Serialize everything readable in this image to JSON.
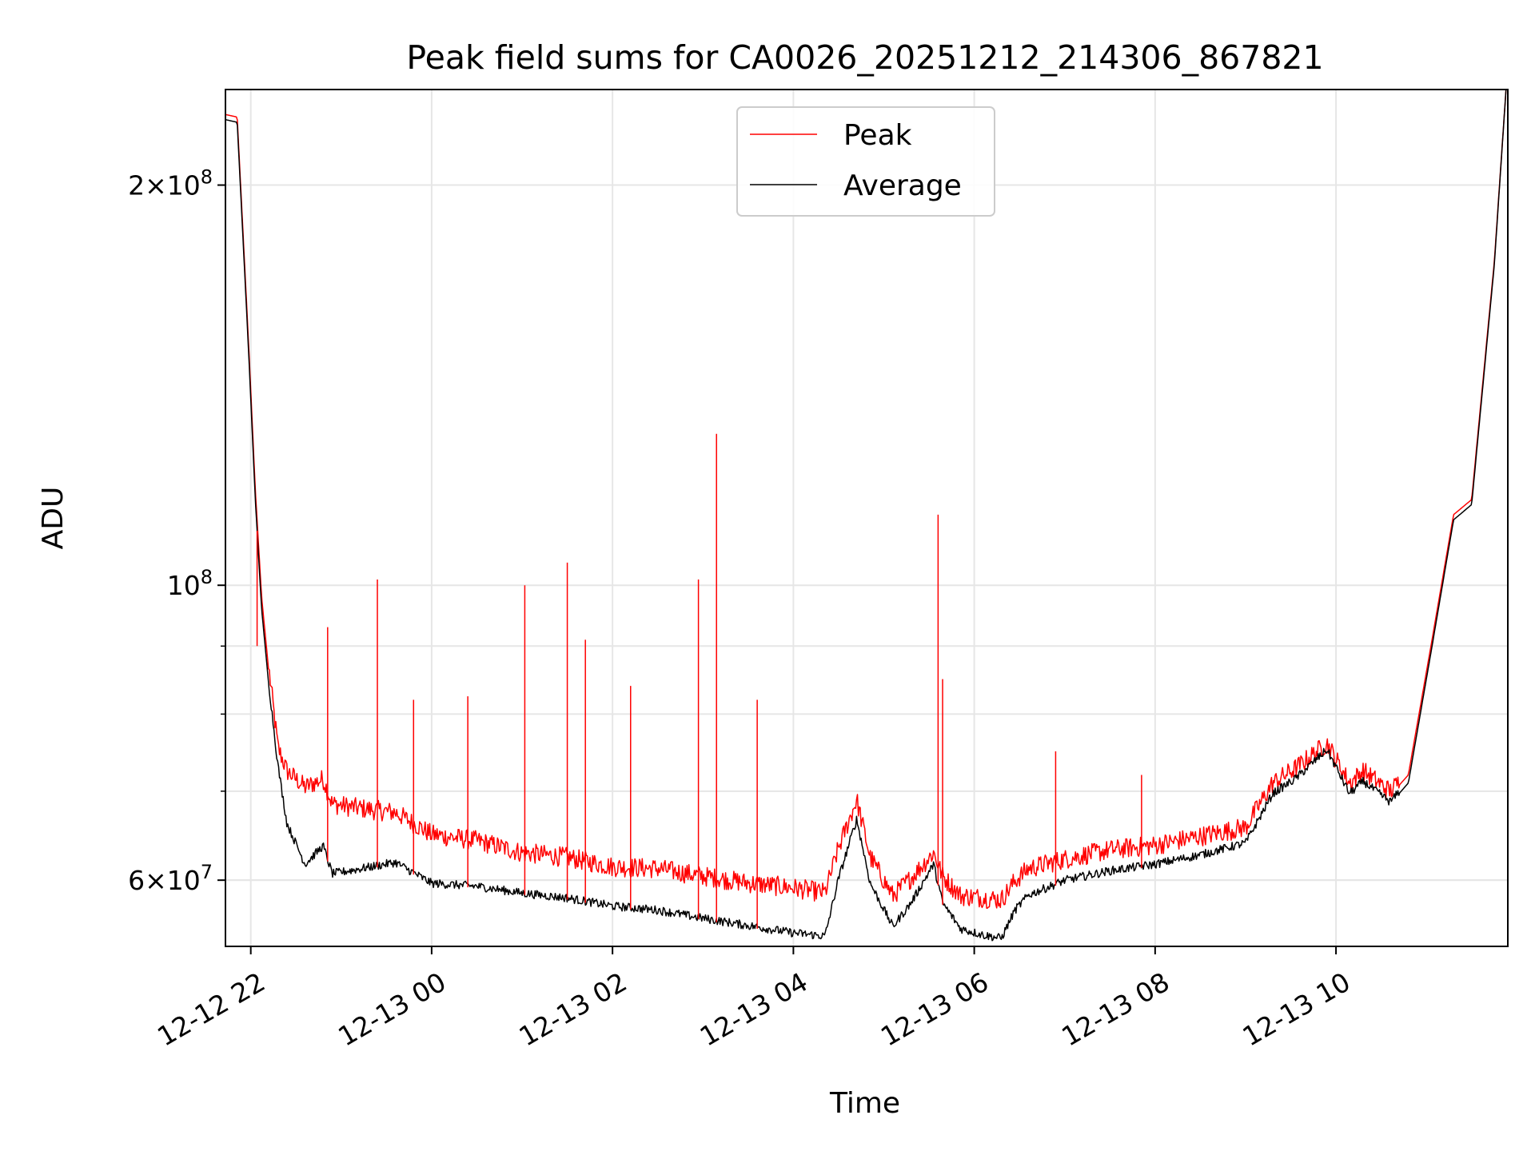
{
  "chart_data": {
    "type": "line",
    "title": "Peak field sums for CA0026_20251212_214306_867821",
    "xlabel": "Time",
    "ylabel": "ADU",
    "yscale": "log",
    "grid": true,
    "legend_position": "top-center",
    "x_unit": "hours since 2025-12-12 00:00",
    "xlim": [
      21.72,
      35.9
    ],
    "ylim": [
      53500000,
      236000000
    ],
    "x_ticks": [
      {
        "value": 22,
        "label": "12-12 22"
      },
      {
        "value": 24,
        "label": "12-13 00"
      },
      {
        "value": 26,
        "label": "12-13 02"
      },
      {
        "value": 28,
        "label": "12-13 04"
      },
      {
        "value": 30,
        "label": "12-13 06"
      },
      {
        "value": 32,
        "label": "12-13 08"
      },
      {
        "value": 34,
        "label": "12-13 10"
      }
    ],
    "y_major_ticks": [
      {
        "value": 60000000,
        "mantissa": "6",
        "exponent": "7"
      },
      {
        "value": 100000000,
        "mantissa": "",
        "exponent": "8"
      },
      {
        "value": 200000000,
        "mantissa": "2",
        "exponent": "8"
      }
    ],
    "y_minor_ticks": [
      60000000,
      70000000,
      80000000,
      90000000
    ],
    "times_sign": "×",
    "base": "10",
    "series": [
      {
        "name": "Peak",
        "color": "#ff0000",
        "x": [
          21.72,
          21.85,
          21.98,
          22.05,
          22.12,
          22.2,
          22.3,
          22.4,
          22.6,
          22.8,
          22.9,
          23.2,
          23.6,
          24.0,
          24.5,
          25.0,
          25.5,
          26.0,
          26.5,
          27.0,
          27.5,
          28.0,
          28.35,
          28.5,
          28.7,
          28.85,
          29.1,
          29.3,
          29.55,
          29.65,
          29.85,
          30.1,
          30.3,
          30.45,
          30.6,
          31.0,
          31.5,
          32.0,
          32.5,
          33.0,
          33.3,
          33.55,
          33.9,
          34.15,
          34.3,
          34.6,
          34.8,
          35.05,
          35.3,
          35.5,
          35.75,
          35.88
        ],
        "values": [
          226000000,
          225000000,
          150000000,
          118000000,
          98000000,
          86000000,
          75000000,
          72000000,
          70000000,
          71000000,
          68000000,
          67500000,
          67000000,
          64500000,
          63800000,
          62500000,
          62000000,
          61000000,
          60800000,
          60000000,
          59300000,
          58800000,
          58300000,
          63000000,
          68500000,
          62000000,
          58000000,
          59800000,
          62500000,
          60000000,
          58000000,
          57800000,
          57600000,
          59500000,
          60800000,
          61800000,
          62800000,
          63300000,
          64300000,
          65300000,
          70500000,
          72300000,
          75500000,
          70500000,
          72000000,
          69500000,
          72000000,
          90000000,
          113000000,
          116000000,
          175000000,
          236000000
        ]
      },
      {
        "name": "Average",
        "color": "#000000",
        "x": [
          21.72,
          21.85,
          21.98,
          22.05,
          22.12,
          22.2,
          22.3,
          22.4,
          22.6,
          22.8,
          22.9,
          23.2,
          23.6,
          24.0,
          24.5,
          25.0,
          25.5,
          26.0,
          26.5,
          27.0,
          27.5,
          28.0,
          28.35,
          28.5,
          28.7,
          28.85,
          29.1,
          29.3,
          29.55,
          29.65,
          29.85,
          30.1,
          30.3,
          30.45,
          30.6,
          31.0,
          31.5,
          32.0,
          32.5,
          33.0,
          33.3,
          33.55,
          33.9,
          34.15,
          34.3,
          34.6,
          34.8,
          35.05,
          35.3,
          35.5,
          35.75,
          35.88
        ],
        "values": [
          224000000,
          223000000,
          148000000,
          116000000,
          96000000,
          84000000,
          73000000,
          66000000,
          61500000,
          63500000,
          60500000,
          61000000,
          61700000,
          59500000,
          59200000,
          58500000,
          58000000,
          57200000,
          56800000,
          56000000,
          55300000,
          54600000,
          54300000,
          60000000,
          66500000,
          59500000,
          55200000,
          57500000,
          61500000,
          57500000,
          55000000,
          54400000,
          54100000,
          56800000,
          58300000,
          59800000,
          60800000,
          61500000,
          62500000,
          63800000,
          69500000,
          71300000,
          75000000,
          69500000,
          71000000,
          68500000,
          71000000,
          89000000,
          112000000,
          115000000,
          174000000,
          236000000
        ]
      }
    ],
    "peak_spikes": [
      {
        "x": 22.07,
        "value": 90000000
      },
      {
        "x": 22.85,
        "value": 93000000
      },
      {
        "x": 23.4,
        "value": 101000000
      },
      {
        "x": 23.8,
        "value": 82000000
      },
      {
        "x": 24.4,
        "value": 82500000
      },
      {
        "x": 25.03,
        "value": 100000000
      },
      {
        "x": 25.5,
        "value": 104000000
      },
      {
        "x": 25.7,
        "value": 91000000
      },
      {
        "x": 26.2,
        "value": 84000000
      },
      {
        "x": 26.95,
        "value": 101000000
      },
      {
        "x": 27.15,
        "value": 130000000
      },
      {
        "x": 27.6,
        "value": 82000000
      },
      {
        "x": 29.6,
        "value": 113000000
      },
      {
        "x": 29.65,
        "value": 85000000
      },
      {
        "x": 30.9,
        "value": 75000000
      },
      {
        "x": 31.85,
        "value": 72000000
      }
    ]
  }
}
